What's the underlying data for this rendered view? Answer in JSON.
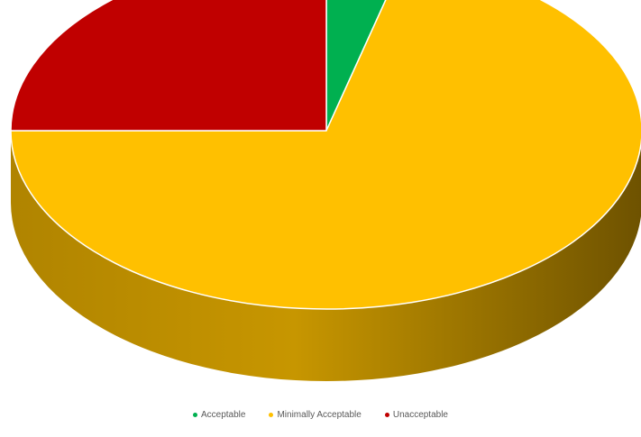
{
  "chart_data": {
    "type": "pie",
    "style": "3d",
    "title": "",
    "categories": [
      "Acceptable",
      "Minimally Acceptable",
      "Unacceptable"
    ],
    "values": [
      4,
      71,
      25
    ],
    "unit": "percent (estimated share)",
    "colors": [
      "#00B050",
      "#FFC000",
      "#C00000"
    ],
    "side_colors": [
      "#007A38",
      "#B38600",
      "#7A0000"
    ],
    "legend_position": "bottom"
  },
  "legend": {
    "items": [
      {
        "label": "Acceptable",
        "color": "#00B050"
      },
      {
        "label": "Minimally Acceptable",
        "color": "#FFC000"
      },
      {
        "label": "Unacceptable",
        "color": "#C00000"
      }
    ]
  }
}
